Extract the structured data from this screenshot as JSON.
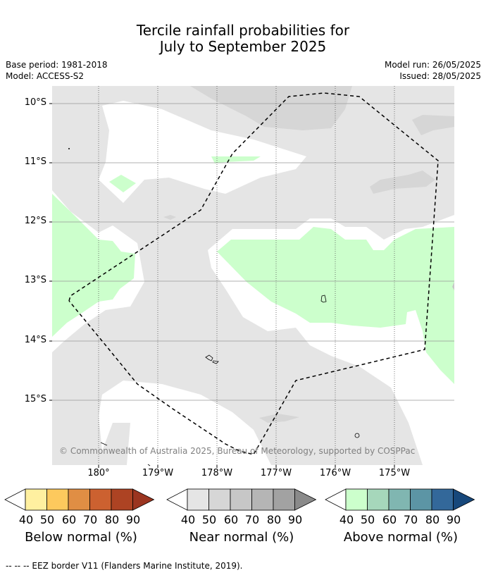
{
  "title": {
    "line1": "Tercile rainfall probabilities for",
    "line2": "July to September 2025"
  },
  "meta": {
    "base_period": "Base period: 1981-2018",
    "model": "Model: ACCESS-S2",
    "model_run": "Model run: 26/05/2025",
    "issued": "Issued: 28/05/2025"
  },
  "axes": {
    "lat_labels": [
      "10°S",
      "11°S",
      "12°S",
      "13°S",
      "14°S",
      "15°S"
    ],
    "lon_labels": [
      "180°",
      "179°W",
      "178°W",
      "177°W",
      "176°W",
      "175°W"
    ]
  },
  "copyright": "© Commonwealth of Australia 2025, Bureau of Meteorology, supported by COSPPac",
  "legends": [
    {
      "title": "Below normal (%)",
      "ticks": [
        "40",
        "50",
        "60",
        "70",
        "80",
        "90"
      ],
      "colors": [
        "#ffffff",
        "#fff0a0",
        "#fdc95d",
        "#e08e44",
        "#cc6130",
        "#ad4323",
        "#9b3520"
      ]
    },
    {
      "title": "Near normal (%)",
      "ticks": [
        "40",
        "50",
        "60",
        "70",
        "80",
        "90"
      ],
      "colors": [
        "#ffffff",
        "#e5e5e5",
        "#d6d6d6",
        "#c7c7c7",
        "#b5b5b5",
        "#a2a2a2",
        "#8a8a8a"
      ]
    },
    {
      "title": "Above normal (%)",
      "ticks": [
        "40",
        "50",
        "60",
        "70",
        "80",
        "90"
      ],
      "colors": [
        "#ffffff",
        "#ccffcc",
        "#a6d7bb",
        "#80b6b1",
        "#5c95a5",
        "#33689a",
        "#17487b"
      ]
    }
  ],
  "footnote": "--  --  -- EEZ border V11 (Flanders Marine Institute, 2019).",
  "colors": {
    "near_normal_light": "#e5e5e5",
    "near_normal_mid": "#d6d6d6",
    "above_normal_light": "#ccffcc",
    "no_dominant": "#ffffff"
  }
}
